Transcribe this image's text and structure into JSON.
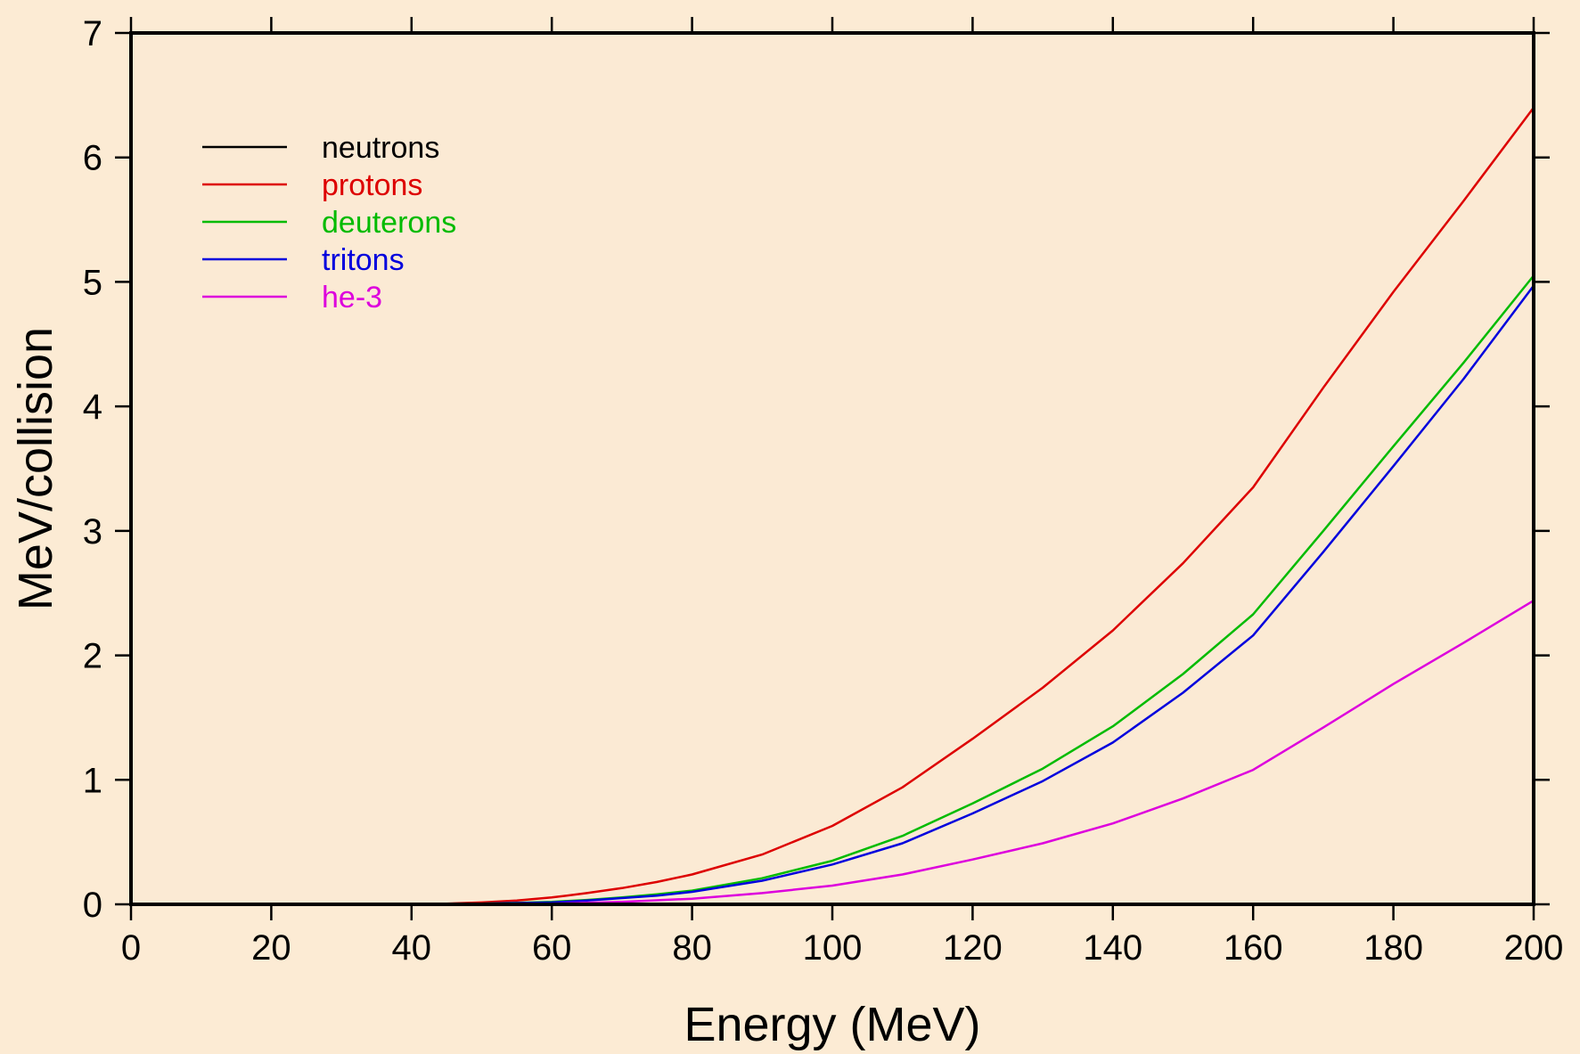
{
  "chart_data": {
    "type": "line",
    "xlabel": "Energy (MeV)",
    "ylabel": "MeV/collision",
    "xlim": [
      0,
      200
    ],
    "ylim": [
      0,
      7
    ],
    "xticks": [
      0,
      20,
      40,
      60,
      80,
      100,
      120,
      140,
      160,
      180,
      200
    ],
    "yticks": [
      0,
      1,
      2,
      3,
      4,
      5,
      6,
      7
    ],
    "grid": false,
    "legend": "top-left",
    "background_color": "#fcebd4",
    "plot_background_color": "#fbead4",
    "series": [
      {
        "name": "neutrons",
        "color": "#000000",
        "x": [
          10,
          14,
          20,
          30,
          40,
          50
        ],
        "y": [
          0,
          0,
          0,
          0,
          0,
          0
        ]
      },
      {
        "name": "protons",
        "color": "#dd0000",
        "x": [
          10,
          14,
          20,
          30,
          40,
          45,
          50,
          55,
          60,
          65,
          70,
          75,
          80,
          90,
          100,
          110,
          120,
          130,
          140,
          150,
          160,
          170,
          180,
          190,
          200
        ],
        "y": [
          0,
          0,
          0,
          0,
          0,
          0.005,
          0.015,
          0.03,
          0.055,
          0.09,
          0.13,
          0.18,
          0.24,
          0.4,
          0.63,
          0.94,
          1.33,
          1.74,
          2.2,
          2.74,
          3.35,
          4.15,
          4.92,
          5.65,
          6.4
        ]
      },
      {
        "name": "deuterons",
        "color": "#00bb00",
        "x": [
          14,
          20,
          30,
          40,
          50,
          60,
          65,
          70,
          75,
          80,
          90,
          100,
          110,
          120,
          130,
          140,
          150,
          160,
          170,
          180,
          190,
          200
        ],
        "y": [
          0,
          0,
          0,
          0,
          0.005,
          0.02,
          0.035,
          0.055,
          0.08,
          0.11,
          0.21,
          0.35,
          0.55,
          0.81,
          1.09,
          1.43,
          1.85,
          2.33,
          3.0,
          3.68,
          4.35,
          5.05
        ]
      },
      {
        "name": "tritons",
        "color": "#0000dd",
        "x": [
          14,
          20,
          30,
          40,
          50,
          60,
          65,
          70,
          75,
          80,
          90,
          100,
          110,
          120,
          130,
          140,
          150,
          160,
          170,
          180,
          190,
          200
        ],
        "y": [
          0,
          0,
          0,
          0,
          0.005,
          0.015,
          0.03,
          0.05,
          0.07,
          0.1,
          0.19,
          0.32,
          0.49,
          0.73,
          0.99,
          1.3,
          1.7,
          2.16,
          2.83,
          3.52,
          4.22,
          4.97
        ]
      },
      {
        "name": "he-3",
        "color": "#dd00dd",
        "x": [
          14,
          20,
          30,
          40,
          50,
          60,
          70,
          80,
          90,
          100,
          110,
          120,
          130,
          140,
          150,
          160,
          170,
          180,
          190,
          200
        ],
        "y": [
          0,
          0,
          0,
          0,
          0,
          0.005,
          0.02,
          0.045,
          0.09,
          0.15,
          0.24,
          0.36,
          0.49,
          0.65,
          0.85,
          1.08,
          1.42,
          1.77,
          2.1,
          2.44
        ]
      }
    ]
  }
}
